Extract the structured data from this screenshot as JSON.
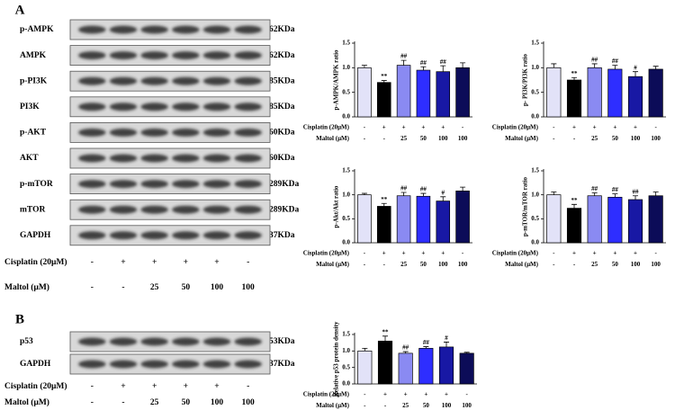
{
  "chart_data": [
    {
      "type": "bar",
      "ylabel": "p-AMPK/AMPK ratio",
      "categories": [
        null,
        null,
        null,
        null,
        null,
        null
      ],
      "values": [
        1.0,
        0.7,
        1.05,
        0.95,
        0.92,
        1.0
      ],
      "errors": [
        0.05,
        0.04,
        0.1,
        0.07,
        0.12,
        0.1
      ],
      "annotations": [
        null,
        "**",
        "##",
        "##",
        "##",
        null
      ],
      "colors": [
        "#e2e2f8",
        "#000000",
        "#8a8af2",
        "#2e2eff",
        "#1818a4",
        "#0c0c58"
      ],
      "ylim": [
        0,
        1.5
      ],
      "yticks": [
        {
          "value": 0,
          "label": "0.0"
        },
        {
          "value": 0.5,
          "label": "0.5"
        },
        {
          "value": 1,
          "label": "1.0"
        },
        {
          "value": 1.5,
          "label": "1.5"
        }
      ],
      "treatments": [
        {
          "name": "Cisplatin (20μM)",
          "values": [
            "-",
            "+",
            "+",
            "+",
            "+",
            "-"
          ]
        },
        {
          "name": "Maltol (μM)",
          "values": [
            "-",
            "-",
            "25",
            "50",
            "100",
            "100"
          ]
        }
      ]
    },
    {
      "type": "bar",
      "ylabel": "p- PI3K/PI3K ratio",
      "categories": [
        null,
        null,
        null,
        null,
        null,
        null
      ],
      "values": [
        1.0,
        0.75,
        1.0,
        0.97,
        0.82,
        0.97
      ],
      "errors": [
        0.08,
        0.05,
        0.08,
        0.08,
        0.1,
        0.06
      ],
      "annotations": [
        null,
        "**",
        "##",
        "##",
        "#",
        null
      ],
      "colors": [
        "#e2e2f8",
        "#000000",
        "#8a8af2",
        "#2e2eff",
        "#1818a4",
        "#0c0c58"
      ],
      "ylim": [
        0,
        1.5
      ],
      "yticks": [
        {
          "value": 0,
          "label": "0.0"
        },
        {
          "value": 0.5,
          "label": "0.5"
        },
        {
          "value": 1,
          "label": "1.0"
        },
        {
          "value": 1.5,
          "label": "1.5"
        }
      ],
      "treatments": [
        {
          "name": "Cisplatin (20μM)",
          "values": [
            "-",
            "+",
            "+",
            "+",
            "+",
            "-"
          ]
        },
        {
          "name": "Maltol (μM)",
          "values": [
            "-",
            "-",
            "25",
            "50",
            "100",
            "100"
          ]
        }
      ]
    },
    {
      "type": "bar",
      "ylabel": "p-Akt/Akt ratio",
      "categories": [
        null,
        null,
        null,
        null,
        null,
        null
      ],
      "values": [
        1.0,
        0.76,
        0.98,
        0.97,
        0.87,
        1.08
      ],
      "errors": [
        0.03,
        0.06,
        0.07,
        0.06,
        0.09,
        0.08
      ],
      "annotations": [
        null,
        "**",
        "##",
        "##",
        "#",
        null
      ],
      "colors": [
        "#e2e2f8",
        "#000000",
        "#8a8af2",
        "#2e2eff",
        "#1818a4",
        "#0c0c58"
      ],
      "ylim": [
        0,
        1.5
      ],
      "yticks": [
        {
          "value": 0,
          "label": "0.0"
        },
        {
          "value": 0.5,
          "label": "0.5"
        },
        {
          "value": 1,
          "label": "1.0"
        },
        {
          "value": 1.5,
          "label": "1.5"
        }
      ],
      "treatments": [
        {
          "name": "Cisplatin (20μM)",
          "values": [
            "-",
            "+",
            "+",
            "+",
            "+",
            "-"
          ]
        },
        {
          "name": "Maltol (μM)",
          "values": [
            "-",
            "-",
            "25",
            "50",
            "100",
            "100"
          ]
        }
      ]
    },
    {
      "type": "bar",
      "ylabel": "p-mTOR/mTOR ratio",
      "categories": [
        null,
        null,
        null,
        null,
        null,
        null
      ],
      "values": [
        1.0,
        0.72,
        0.98,
        0.95,
        0.9,
        0.98
      ],
      "errors": [
        0.06,
        0.08,
        0.06,
        0.07,
        0.08,
        0.08
      ],
      "annotations": [
        null,
        "**",
        "##",
        "##",
        "##",
        null
      ],
      "colors": [
        "#e2e2f8",
        "#000000",
        "#8a8af2",
        "#2e2eff",
        "#1818a4",
        "#0c0c58"
      ],
      "ylim": [
        0,
        1.5
      ],
      "yticks": [
        {
          "value": 0,
          "label": "0.0"
        },
        {
          "value": 0.5,
          "label": "0.5"
        },
        {
          "value": 1,
          "label": "1.0"
        },
        {
          "value": 1.5,
          "label": "1.5"
        }
      ],
      "treatments": [
        {
          "name": "Cisplatin (20μM)",
          "values": [
            "-",
            "+",
            "+",
            "+",
            "+",
            "-"
          ]
        },
        {
          "name": "Maltol (μM)",
          "values": [
            "-",
            "-",
            "25",
            "50",
            "100",
            "100"
          ]
        }
      ]
    },
    {
      "type": "bar",
      "ylabel": "Relative p53 protein density",
      "categories": [
        null,
        null,
        null,
        null,
        null,
        null
      ],
      "values": [
        1.0,
        1.3,
        0.93,
        1.08,
        1.12,
        0.93
      ],
      "errors": [
        0.08,
        0.15,
        0.05,
        0.05,
        0.15,
        0.03
      ],
      "annotations": [
        null,
        "**",
        "##",
        "##",
        "#",
        null
      ],
      "colors": [
        "#e2e2f8",
        "#000000",
        "#8a8af2",
        "#2e2eff",
        "#1818a4",
        "#0c0c58"
      ],
      "ylim": [
        0,
        1.5
      ],
      "yticks": [
        {
          "value": 0,
          "label": "0.0"
        },
        {
          "value": 0.5,
          "label": "0.5"
        },
        {
          "value": 1,
          "label": "1.0"
        },
        {
          "value": 1.5,
          "label": "1.5"
        }
      ],
      "treatments": [
        {
          "name": "Cisplatin (20μM)",
          "values": [
            "-",
            "+",
            "+",
            "+",
            "+",
            "-"
          ]
        },
        {
          "name": "Maltol (μM)",
          "values": [
            "-",
            "-",
            "25",
            "50",
            "100",
            "100"
          ]
        }
      ]
    }
  ],
  "blots": [
    {
      "label": "A",
      "bands": [
        {
          "name": "p-AMPK",
          "size": "62KDa"
        },
        {
          "name": "AMPK",
          "size": "62KDa"
        },
        {
          "name": "p-PI3K",
          "size": "85KDa"
        },
        {
          "name": "PI3K",
          "size": "85KDa"
        },
        {
          "name": "p-AKT",
          "size": "60KDa"
        },
        {
          "name": "AKT",
          "size": "60KDa"
        },
        {
          "name": "p-mTOR",
          "size": "289KDa"
        },
        {
          "name": "mTOR",
          "size": "289KDa"
        },
        {
          "name": "GAPDH",
          "size": "37KDa"
        }
      ],
      "treatments": [
        {
          "name": "Cisplatin (20μM)",
          "values": [
            "-",
            "+",
            "+",
            "+",
            "+",
            "-"
          ]
        },
        {
          "name": "Maltol (μM)",
          "values": [
            "-",
            "-",
            "25",
            "50",
            "100",
            "100"
          ]
        }
      ]
    },
    {
      "label": "B",
      "bands": [
        {
          "name": "p53",
          "size": "53KDa"
        },
        {
          "name": "GAPDH",
          "size": "37KDa"
        }
      ],
      "treatments": [
        {
          "name": "Cisplatin (20μM)",
          "values": [
            "-",
            "+",
            "+",
            "+",
            "+",
            "-"
          ]
        },
        {
          "name": "Maltol (μM)",
          "values": [
            "-",
            "-",
            "25",
            "50",
            "100",
            "100"
          ]
        }
      ]
    }
  ]
}
